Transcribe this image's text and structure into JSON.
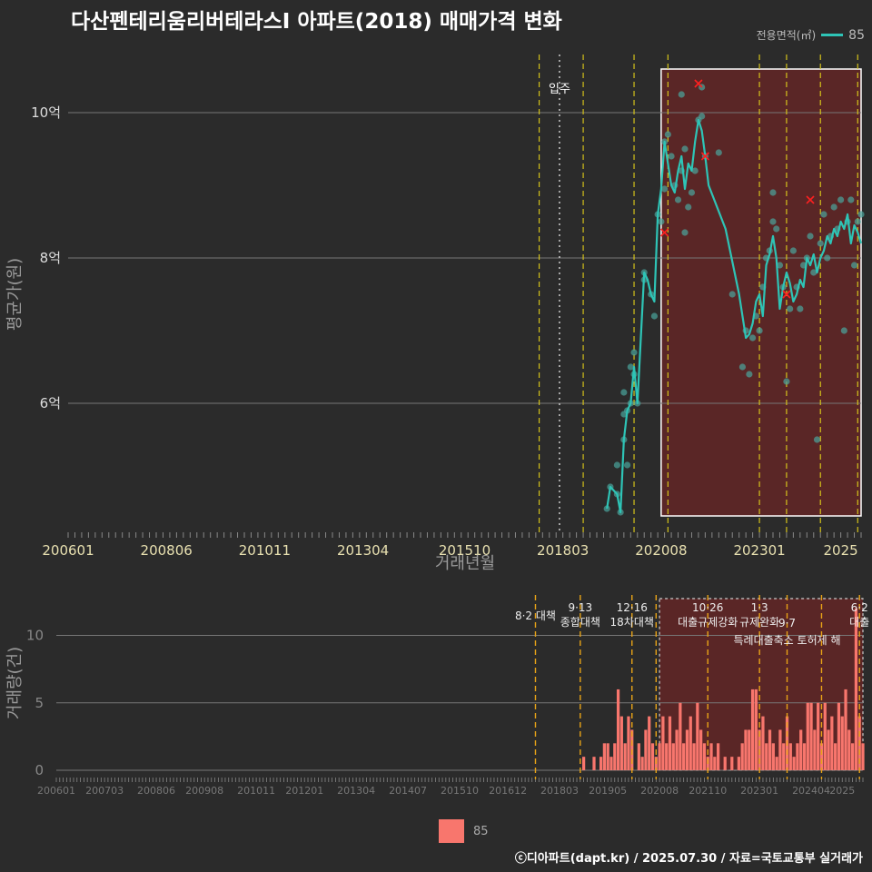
{
  "title": "다산펜테리움리버테라스Ⅰ 아파트(2018) 매매가격 변화",
  "legend": {
    "title": "전용면적(㎡)",
    "value": "85"
  },
  "footer": "ⓒ디아파트(dapt.kr) / 2025.07.30 / 자료=국토교통부 실거래가",
  "colors": {
    "line": "#2ec4b6",
    "bar": "#f8766d",
    "policy": "#d4c21a",
    "background": "#2b2b2b",
    "highlight": "#6b2626"
  },
  "chart_data": [
    {
      "type": "line",
      "ylabel": "평균가(원)",
      "xlabel": "거래년월",
      "ylim": [
        4.2,
        10.8
      ],
      "xrange": [
        "2006-01",
        "2025-07"
      ],
      "yticks": [
        {
          "v": 6,
          "label": "6억"
        },
        {
          "v": 8,
          "label": "8억"
        },
        {
          "v": 10,
          "label": "10억"
        }
      ],
      "xticks": [
        "200601",
        "200806",
        "201011",
        "201304",
        "201510",
        "201803",
        "202008",
        "202301",
        "2025"
      ],
      "move_in": {
        "date": "2018-02",
        "label": "입주"
      },
      "policy_lines": [
        "2017-08",
        "2018-09",
        "2019-12",
        "2020-10",
        "2023-01",
        "2023-09",
        "2024-07",
        "2025-06"
      ],
      "highlight": {
        "from": "2020-08",
        "to": "2025-07",
        "ymin": 4.45,
        "ymax": 10.6
      },
      "series": [
        {
          "name": "85",
          "x": [
            "2019-04",
            "2019-05",
            "2019-07",
            "2019-08",
            "2019-09",
            "2019-10",
            "2019-11",
            "2019-12",
            "2020-01",
            "2020-03",
            "2020-04",
            "2020-05",
            "2020-06",
            "2020-07",
            "2020-08",
            "2020-09",
            "2020-10",
            "2020-11",
            "2020-12",
            "2021-01",
            "2021-02",
            "2021-03",
            "2021-04",
            "2021-05",
            "2021-06",
            "2021-07",
            "2021-08",
            "2021-09",
            "2021-10",
            "2022-03",
            "2022-07",
            "2022-09",
            "2022-10",
            "2022-11",
            "2022-12",
            "2023-01",
            "2023-02",
            "2023-03",
            "2023-04",
            "2023-05",
            "2023-06",
            "2023-07",
            "2023-08",
            "2023-09",
            "2023-10",
            "2023-11",
            "2023-12",
            "2024-01",
            "2024-02",
            "2024-03",
            "2024-04",
            "2024-05",
            "2024-06",
            "2024-07",
            "2024-08",
            "2024-09",
            "2024-10",
            "2024-11",
            "2024-12",
            "2025-01",
            "2025-02",
            "2025-03",
            "2025-04",
            "2025-05",
            "2025-06",
            "2025-07"
          ],
          "y": [
            4.55,
            4.85,
            4.75,
            4.5,
            5.5,
            5.9,
            6.0,
            6.5,
            6.0,
            7.8,
            7.7,
            7.5,
            7.4,
            8.6,
            8.95,
            9.6,
            9.3,
            9.0,
            8.9,
            9.2,
            9.4,
            8.95,
            9.3,
            9.2,
            9.6,
            9.9,
            9.75,
            9.4,
            9.0,
            8.4,
            7.5,
            6.9,
            6.95,
            7.1,
            7.4,
            7.5,
            7.2,
            7.9,
            8.05,
            8.3,
            8.0,
            7.3,
            7.6,
            7.8,
            7.65,
            7.4,
            7.5,
            7.7,
            7.6,
            8.0,
            7.9,
            8.05,
            7.8,
            8.0,
            8.1,
            8.3,
            8.2,
            8.4,
            8.3,
            8.5,
            8.4,
            8.6,
            8.2,
            8.45,
            8.35,
            8.2
          ],
          "points": [
            [
              "2019-04",
              4.55
            ],
            [
              "2019-05",
              4.85
            ],
            [
              "2019-07",
              4.75
            ],
            [
              "2019-07",
              5.15
            ],
            [
              "2019-08",
              4.5
            ],
            [
              "2019-09",
              5.5
            ],
            [
              "2019-09",
              5.85
            ],
            [
              "2019-09",
              6.15
            ],
            [
              "2019-10",
              5.15
            ],
            [
              "2019-10",
              5.9
            ],
            [
              "2019-11",
              6.5
            ],
            [
              "2019-11",
              6.0
            ],
            [
              "2019-12",
              6.4
            ],
            [
              "2019-12",
              6.7
            ],
            [
              "2020-01",
              6.0
            ],
            [
              "2020-03",
              7.7
            ],
            [
              "2020-03",
              7.8
            ],
            [
              "2020-05",
              7.5
            ],
            [
              "2020-06",
              7.2
            ],
            [
              "2020-07",
              8.6
            ],
            [
              "2020-08",
              8.5
            ],
            [
              "2020-09",
              8.95
            ],
            [
              "2020-09",
              9.6
            ],
            [
              "2020-10",
              9.7
            ],
            [
              "2020-11",
              9.4
            ],
            [
              "2020-12",
              9.0
            ],
            [
              "2021-01",
              8.8
            ],
            [
              "2021-02",
              10.25
            ],
            [
              "2021-02",
              9.2
            ],
            [
              "2021-03",
              8.35
            ],
            [
              "2021-03",
              9.5
            ],
            [
              "2021-04",
              8.7
            ],
            [
              "2021-05",
              8.9
            ],
            [
              "2021-06",
              9.2
            ],
            [
              "2021-07",
              9.9
            ],
            [
              "2021-08",
              9.95
            ],
            [
              "2021-08",
              10.35
            ],
            [
              "2021-09",
              9.4
            ],
            [
              "2022-01",
              9.45
            ],
            [
              "2022-05",
              7.5
            ],
            [
              "2022-08",
              6.5
            ],
            [
              "2022-09",
              7.0
            ],
            [
              "2022-10",
              6.4
            ],
            [
              "2022-11",
              6.9
            ],
            [
              "2022-12",
              7.2
            ],
            [
              "2023-01",
              7.0
            ],
            [
              "2023-02",
              7.6
            ],
            [
              "2023-03",
              8.0
            ],
            [
              "2023-04",
              8.1
            ],
            [
              "2023-05",
              8.9
            ],
            [
              "2023-05",
              8.5
            ],
            [
              "2023-06",
              8.4
            ],
            [
              "2023-07",
              7.9
            ],
            [
              "2023-08",
              7.6
            ],
            [
              "2023-09",
              6.3
            ],
            [
              "2023-10",
              7.3
            ],
            [
              "2023-11",
              8.1
            ],
            [
              "2023-12",
              7.6
            ],
            [
              "2024-01",
              7.3
            ],
            [
              "2024-02",
              7.9
            ],
            [
              "2024-03",
              8.0
            ],
            [
              "2024-04",
              8.3
            ],
            [
              "2024-05",
              7.8
            ],
            [
              "2024-06",
              5.5
            ],
            [
              "2024-07",
              8.2
            ],
            [
              "2024-08",
              8.6
            ],
            [
              "2024-09",
              8.0
            ],
            [
              "2024-10",
              8.3
            ],
            [
              "2024-11",
              8.7
            ],
            [
              "2024-12",
              8.4
            ],
            [
              "2025-01",
              8.8
            ],
            [
              "2025-02",
              7.0
            ],
            [
              "2025-03",
              8.5
            ],
            [
              "2025-04",
              8.8
            ],
            [
              "2025-05",
              7.9
            ],
            [
              "2025-06",
              8.5
            ],
            [
              "2025-07",
              8.6
            ]
          ],
          "cancelled": [
            [
              "2020-09",
              8.35
            ],
            [
              "2021-07",
              10.4
            ],
            [
              "2021-09",
              9.4
            ],
            [
              "2023-09",
              7.5
            ],
            [
              "2024-04",
              8.8
            ]
          ]
        }
      ]
    },
    {
      "type": "bar",
      "ylabel": "거래량(건)",
      "ylim": [
        0,
        13
      ],
      "yticks": [
        0,
        5,
        10
      ],
      "xticks": [
        "200601",
        "200703",
        "200806",
        "200908",
        "201011",
        "201201",
        "201304",
        "201407",
        "201510",
        "201612",
        "201803",
        "201905",
        "202008",
        "202110",
        "202301",
        "202404",
        "2025"
      ],
      "policies": [
        {
          "date": "2017-08",
          "lines": [
            "8·2 대책"
          ]
        },
        {
          "date": "2018-09",
          "lines": [
            "9·13",
            "종합대책"
          ]
        },
        {
          "date": "2019-12",
          "lines": [
            "12·16",
            "18차대책"
          ]
        },
        {
          "date": "2020-07",
          "lines": []
        },
        {
          "date": "2021-10",
          "lines": [
            "10·26",
            "대출규제강화"
          ]
        },
        {
          "date": "2023-01",
          "lines": [
            "1·3",
            "규제완화"
          ]
        },
        {
          "date": "2023-09",
          "lines": [
            "9·7",
            "특례대출축소 토허제 해"
          ]
        },
        {
          "date": "2024-07",
          "lines": []
        },
        {
          "date": "2025-06",
          "lines": [
            "6·2",
            "대출"
          ]
        }
      ],
      "highlight": {
        "from": "2020-08",
        "to": "2025-07"
      },
      "series": [
        {
          "name": "85",
          "x": [
            "2018-10",
            "2019-01",
            "2019-03",
            "2019-04",
            "2019-05",
            "2019-06",
            "2019-07",
            "2019-08",
            "2019-09",
            "2019-10",
            "2019-11",
            "2019-12",
            "2020-02",
            "2020-03",
            "2020-04",
            "2020-05",
            "2020-06",
            "2020-07",
            "2020-08",
            "2020-09",
            "2020-10",
            "2020-11",
            "2020-12",
            "2021-01",
            "2021-02",
            "2021-03",
            "2021-04",
            "2021-05",
            "2021-06",
            "2021-07",
            "2021-08",
            "2021-09",
            "2021-10",
            "2021-11",
            "2021-12",
            "2022-01",
            "2022-03",
            "2022-05",
            "2022-07",
            "2022-08",
            "2022-09",
            "2022-10",
            "2022-11",
            "2022-12",
            "2023-01",
            "2023-02",
            "2023-03",
            "2023-04",
            "2023-05",
            "2023-06",
            "2023-07",
            "2023-08",
            "2023-09",
            "2023-10",
            "2023-11",
            "2023-12",
            "2024-01",
            "2024-02",
            "2024-03",
            "2024-04",
            "2024-05",
            "2024-06",
            "2024-07",
            "2024-08",
            "2024-09",
            "2024-10",
            "2024-11",
            "2024-12",
            "2025-01",
            "2025-02",
            "2025-03",
            "2025-04",
            "2025-05",
            "2025-06",
            "2025-07"
          ],
          "values": [
            1,
            1,
            1,
            2,
            2,
            1,
            2,
            6,
            4,
            2,
            4,
            3,
            2,
            1,
            3,
            4,
            2,
            1,
            2,
            4,
            2,
            4,
            2,
            3,
            5,
            2,
            3,
            4,
            2,
            5,
            3,
            2,
            1,
            2,
            1,
            2,
            1,
            1,
            1,
            2,
            3,
            3,
            6,
            6,
            3,
            4,
            2,
            3,
            2,
            1,
            3,
            2,
            4,
            2,
            1,
            2,
            3,
            2,
            5,
            5,
            3,
            5,
            2,
            5,
            3,
            4,
            2,
            5,
            4,
            6,
            3,
            2,
            12,
            4,
            2
          ]
        }
      ]
    }
  ]
}
